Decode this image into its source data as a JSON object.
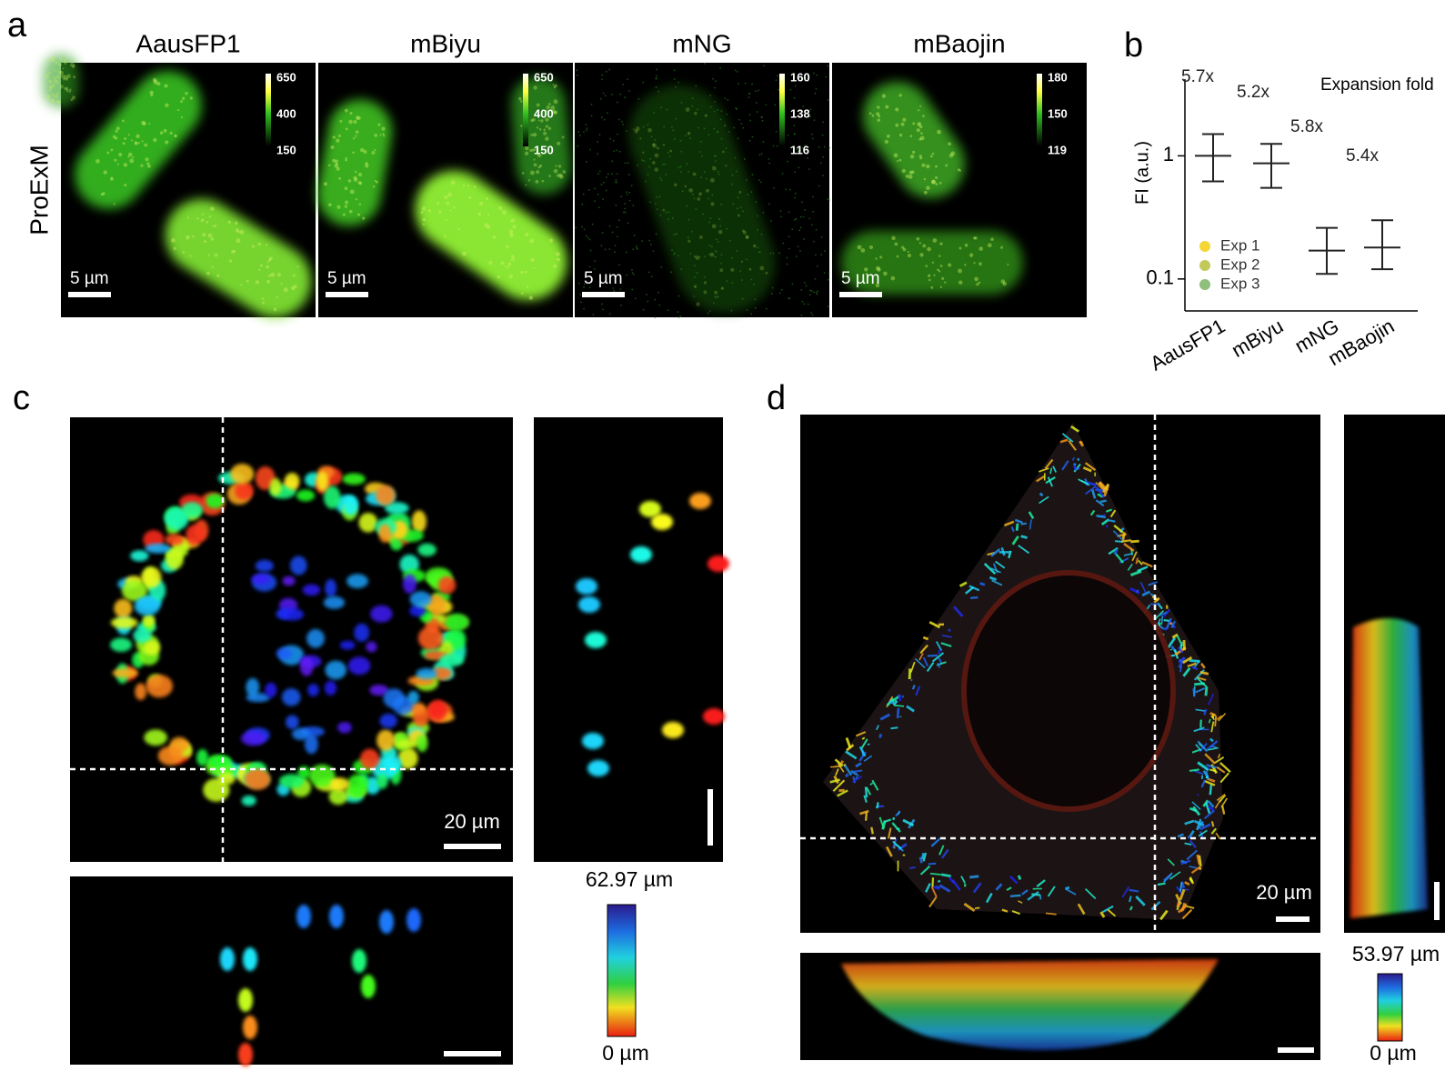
{
  "panel_labels": [
    "a",
    "b",
    "c",
    "d"
  ],
  "panel_a": {
    "row_label": "ProExM",
    "images": [
      {
        "title": "AausFP1",
        "colorbar": [
          650,
          400,
          150
        ],
        "scale_bar": "5 µm"
      },
      {
        "title": "mBiyu",
        "colorbar": [
          650,
          400,
          150
        ],
        "scale_bar": "5 µm"
      },
      {
        "title": "mNG",
        "colorbar": [
          160,
          138,
          116
        ],
        "scale_bar": "5 µm"
      },
      {
        "title": "mBaojin",
        "colorbar": [
          180,
          150,
          119
        ],
        "scale_bar": "5 µm"
      }
    ]
  },
  "chart_data": {
    "type": "errorbar",
    "ylabel": "FI (a.u.)",
    "categories": [
      "AausFP1",
      "mBiyu",
      "mNG",
      "mBaojin"
    ],
    "values": [
      1.0,
      0.87,
      0.17,
      0.18
    ],
    "error_low": [
      0.62,
      0.55,
      0.11,
      0.12
    ],
    "error_high": [
      1.5,
      1.25,
      0.26,
      0.3
    ],
    "ylim": [
      0.055,
      4.2
    ],
    "yticks": [
      0.1,
      1
    ],
    "log_scale": true,
    "color": "#222222",
    "annotation_title": "Expansion fold",
    "annotations": [
      "5.7x",
      "5.2x",
      "5.8x",
      "5.4x"
    ],
    "legend": [
      {
        "name": "Exp 1",
        "color": "#f5d633"
      },
      {
        "name": "Exp 2",
        "color": "#c2c95a"
      },
      {
        "name": "Exp 3",
        "color": "#8fbf7a"
      }
    ]
  },
  "panel_c": {
    "scale_bar": "20 µm",
    "depth_top": "62.97 µm",
    "depth_bottom": "0 µm"
  },
  "panel_d": {
    "scale_bar": "20 µm",
    "depth_top": "53.97 µm",
    "depth_bottom": "0 µm"
  }
}
